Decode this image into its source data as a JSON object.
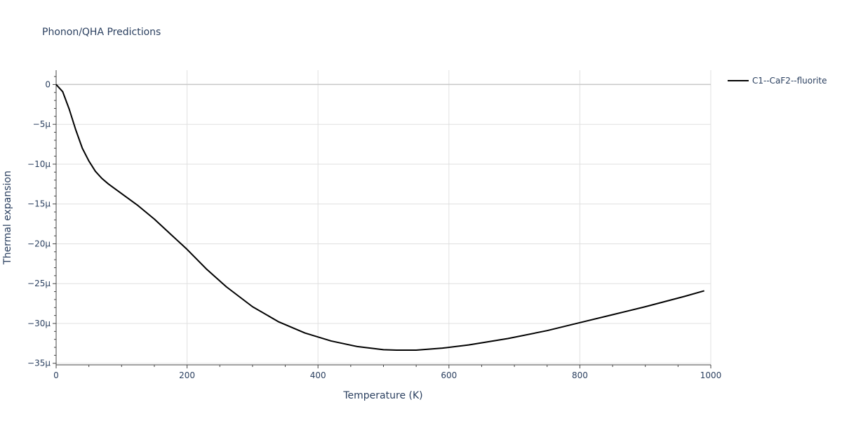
{
  "chart_data": {
    "type": "line",
    "title": "Phonon/QHA Predictions",
    "xlabel": "Temperature (K)",
    "ylabel": "Thermal expansion",
    "xlim": [
      0,
      1000
    ],
    "ylim": [
      -35.2,
      1.8
    ],
    "x_ticks": [
      0,
      200,
      400,
      600,
      800,
      1000
    ],
    "x_tick_labels": [
      "0",
      "200",
      "400",
      "600",
      "800",
      "1000"
    ],
    "y_ticks": [
      0,
      -5,
      -10,
      -15,
      -20,
      -25,
      -30,
      -35
    ],
    "y_tick_labels": [
      "0",
      "−5μ",
      "−10μ",
      "−15μ",
      "−20μ",
      "−25μ",
      "−30μ",
      "−35μ"
    ],
    "y_unit": "μ",
    "grid": true,
    "legend_position": "top-right",
    "series": [
      {
        "name": "C1--CaF2--fluorite",
        "color": "#000000",
        "x": [
          0,
          10,
          20,
          30,
          40,
          50,
          60,
          70,
          80,
          100,
          125,
          150,
          175,
          200,
          230,
          260,
          300,
          340,
          380,
          420,
          460,
          500,
          520,
          550,
          590,
          630,
          690,
          750,
          800,
          850,
          900,
          960,
          990
        ],
        "y": [
          0,
          -0.9,
          -3.1,
          -5.7,
          -8.0,
          -9.6,
          -10.9,
          -11.8,
          -12.5,
          -13.7,
          -15.2,
          -16.9,
          -18.8,
          -20.7,
          -23.2,
          -25.4,
          -27.9,
          -29.8,
          -31.2,
          -32.2,
          -32.9,
          -33.3,
          -33.35,
          -33.35,
          -33.1,
          -32.7,
          -31.9,
          -30.9,
          -29.9,
          -28.9,
          -27.9,
          -26.6,
          -25.9
        ]
      }
    ]
  }
}
